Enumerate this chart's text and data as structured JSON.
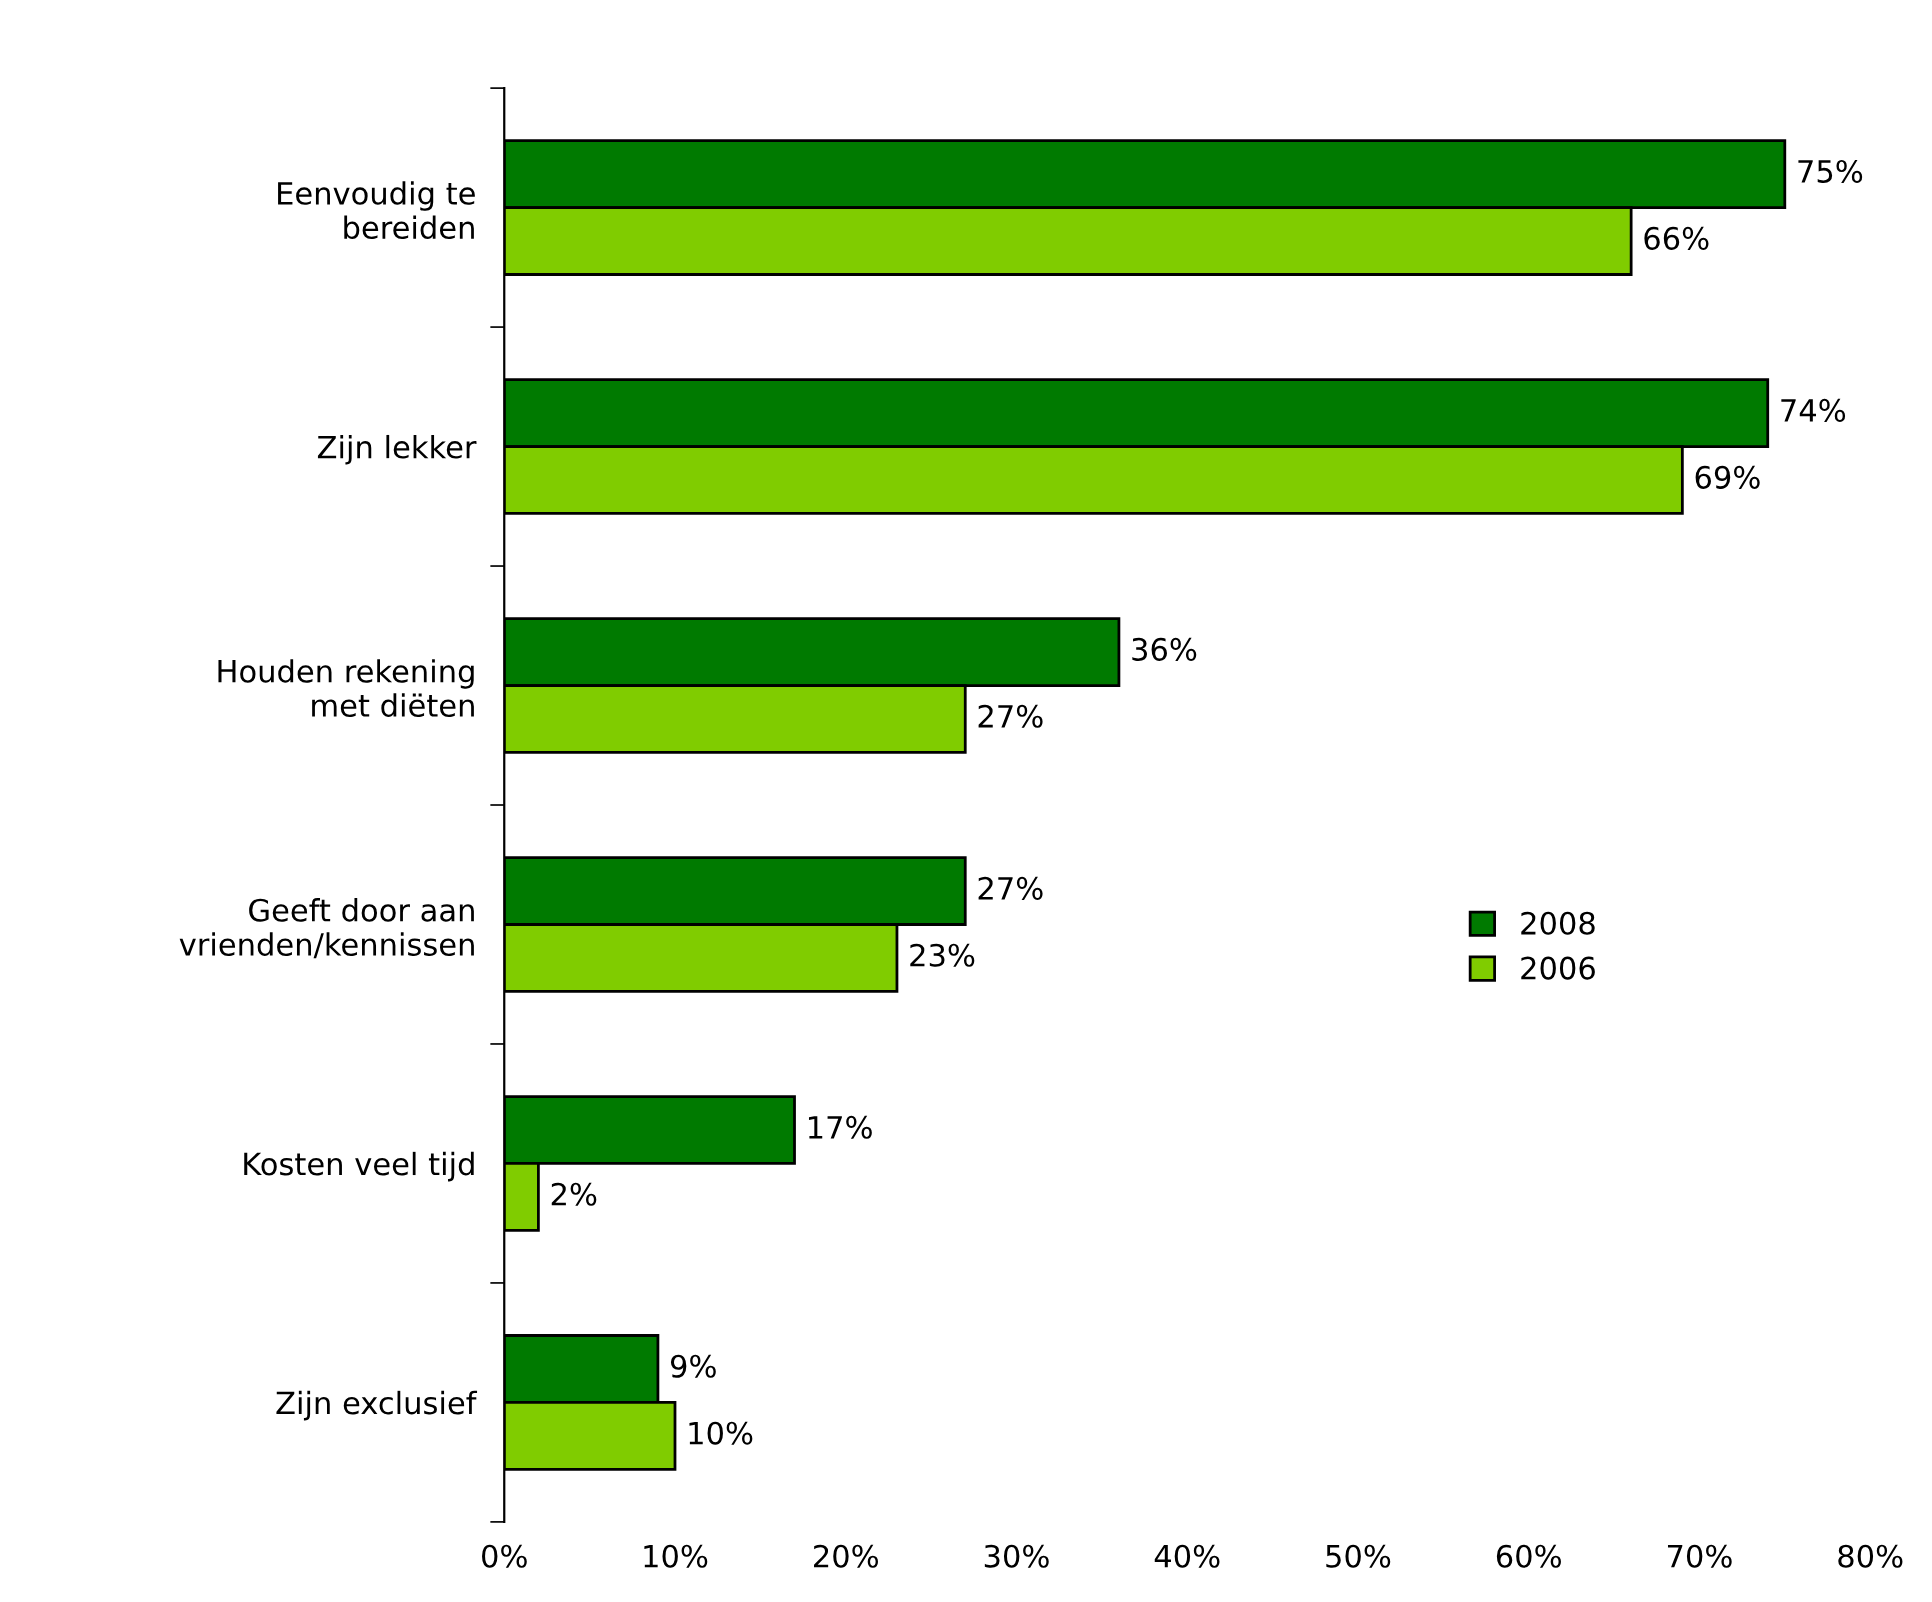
{
  "chart_data": {
    "type": "bar",
    "orientation": "horizontal",
    "categories": [
      "Eenvoudig te\nbereiden",
      "Zijn lekker",
      "Houden rekening\nmet diëten",
      "Geeft door aan\nvrienden/kennissen",
      "Kosten veel tijd",
      "Zijn exclusief"
    ],
    "series": [
      {
        "name": "2008",
        "color": "#007a00",
        "values": [
          75,
          74,
          36,
          27,
          17,
          9
        ],
        "value_labels": [
          "75%",
          "74%",
          "36%",
          "27%",
          "17%",
          "9%"
        ]
      },
      {
        "name": "2006",
        "color": "#80cc00",
        "values": [
          66,
          69,
          27,
          23,
          2,
          10
        ],
        "value_labels": [
          "66%",
          "69%",
          "27%",
          "23%",
          "2%",
          "10%"
        ]
      }
    ],
    "xlim": [
      0,
      80
    ],
    "xticks": [
      {
        "value": 0,
        "label": "0%"
      },
      {
        "value": 10,
        "label": "10%"
      },
      {
        "value": 20,
        "label": "20%"
      },
      {
        "value": 30,
        "label": "30%"
      },
      {
        "value": 40,
        "label": "40%"
      },
      {
        "value": 50,
        "label": "50%"
      },
      {
        "value": 60,
        "label": "60%"
      },
      {
        "value": 70,
        "label": "70%"
      },
      {
        "value": 80,
        "label": "80%"
      }
    ],
    "grid": false,
    "legend": "center right"
  }
}
